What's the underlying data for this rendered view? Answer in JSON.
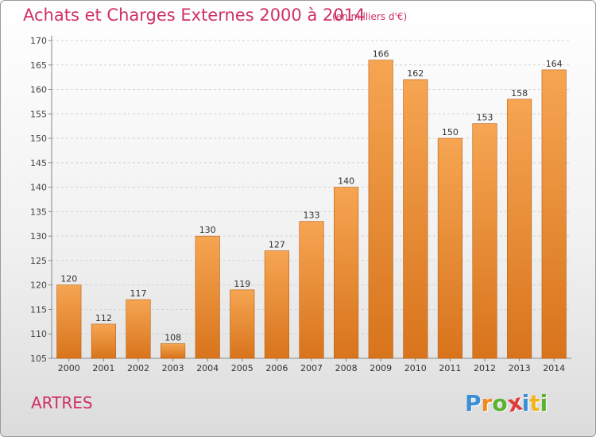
{
  "header": {
    "title": "Achats et Charges Externes 2000 à 2014",
    "subtitle": "(en milliers d'€)"
  },
  "footer": {
    "commune": "ARTRES",
    "logo_letters": [
      "P",
      "r",
      "o",
      "x",
      "i",
      "t",
      "i"
    ]
  },
  "colors": {
    "title": "#cf2f68",
    "bar_light": "#f6a552",
    "bar_dark": "#d8741c",
    "bar_edge": "#b95f12",
    "logo": [
      "#3a8fd6",
      "#f08a1c",
      "#59b32c",
      "#e03a3a",
      "#3a8fd6",
      "#f0b51c",
      "#59b32c"
    ]
  },
  "chart_data": {
    "type": "bar",
    "title": "Achats et Charges Externes 2000 à 2014",
    "subtitle": "(en milliers d'€)",
    "xlabel": "",
    "ylabel": "",
    "categories": [
      "2000",
      "2001",
      "2002",
      "2003",
      "2004",
      "2005",
      "2006",
      "2007",
      "2008",
      "2009",
      "2010",
      "2011",
      "2012",
      "2013",
      "2014"
    ],
    "values": [
      120,
      112,
      117,
      108,
      130,
      119,
      127,
      133,
      140,
      166,
      162,
      150,
      153,
      158,
      164
    ],
    "ylim": [
      105,
      170
    ],
    "yticks": [
      105,
      110,
      115,
      120,
      125,
      130,
      135,
      140,
      145,
      150,
      155,
      160,
      165,
      170
    ],
    "grid": true,
    "legend": "none"
  }
}
